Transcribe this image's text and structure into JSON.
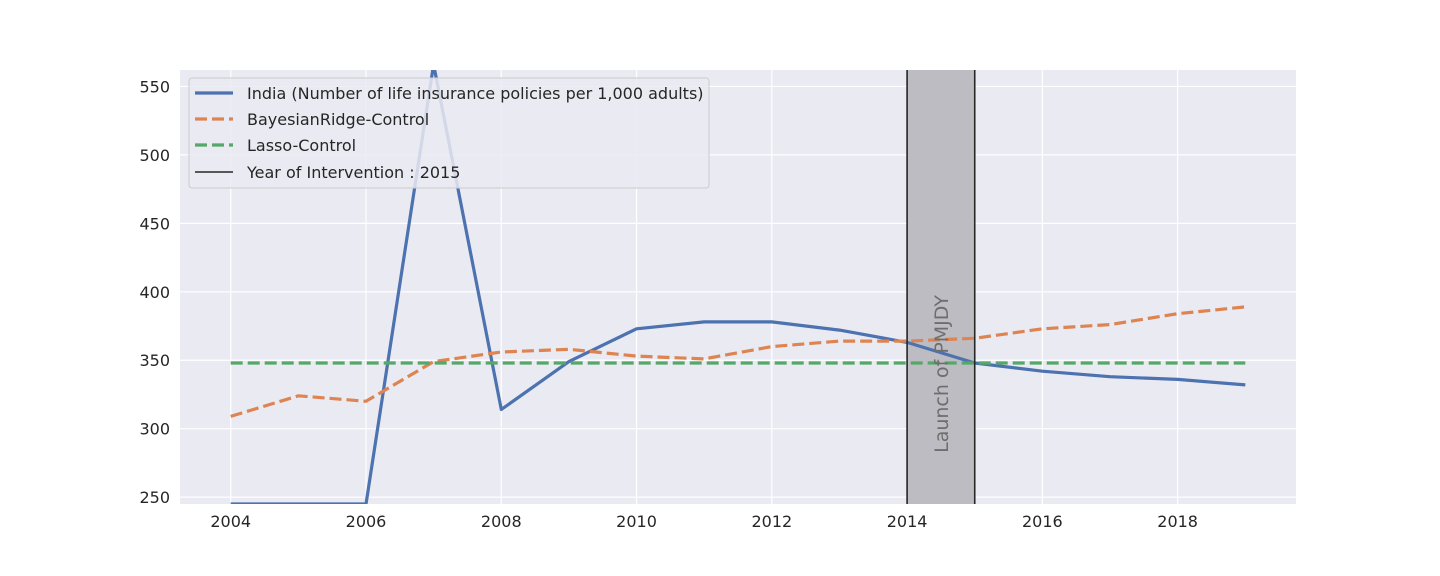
{
  "chart_data": {
    "type": "line",
    "title": "",
    "xlabel": "",
    "ylabel": "",
    "xlim": [
      2003.25,
      2019.75
    ],
    "ylim": [
      245,
      562
    ],
    "x_ticks": [
      2004,
      2006,
      2008,
      2010,
      2012,
      2014,
      2016,
      2018
    ],
    "y_ticks": [
      250,
      300,
      350,
      400,
      450,
      500,
      550
    ],
    "grid": true,
    "legend_position": "top-left",
    "x": [
      2004,
      2005,
      2006,
      2007,
      2008,
      2009,
      2010,
      2011,
      2012,
      2013,
      2014,
      2015,
      2016,
      2017,
      2018,
      2019
    ],
    "series": [
      {
        "name": "India (Number of life insurance policies per 1,000 adults)",
        "style": "solid",
        "color": "#4c72b0",
        "values": [
          245,
          245,
          245,
          566,
          314,
          349,
          373,
          378,
          378,
          372,
          363,
          348,
          342,
          338,
          336,
          332
        ]
      },
      {
        "name": "BayesianRidge-Control",
        "style": "dashed",
        "color": "#dd8452",
        "values": [
          309,
          324,
          320,
          349,
          356,
          358,
          353,
          351,
          360,
          364,
          364,
          366,
          373,
          376,
          384,
          389
        ]
      },
      {
        "name": "Lasso-Control",
        "style": "dashed",
        "color": "#55a868",
        "values": [
          348,
          348,
          348,
          348,
          348,
          348,
          348,
          348,
          348,
          348,
          348,
          348,
          348,
          348,
          348,
          348
        ]
      }
    ],
    "intervention": {
      "label": "Year of Intervention : 2015",
      "year": 2015,
      "color": "#262626"
    },
    "shaded_region": {
      "from": 2014,
      "to": 2015,
      "color": "#bcbcc2",
      "annotation": "Launch of PMJDY"
    }
  }
}
